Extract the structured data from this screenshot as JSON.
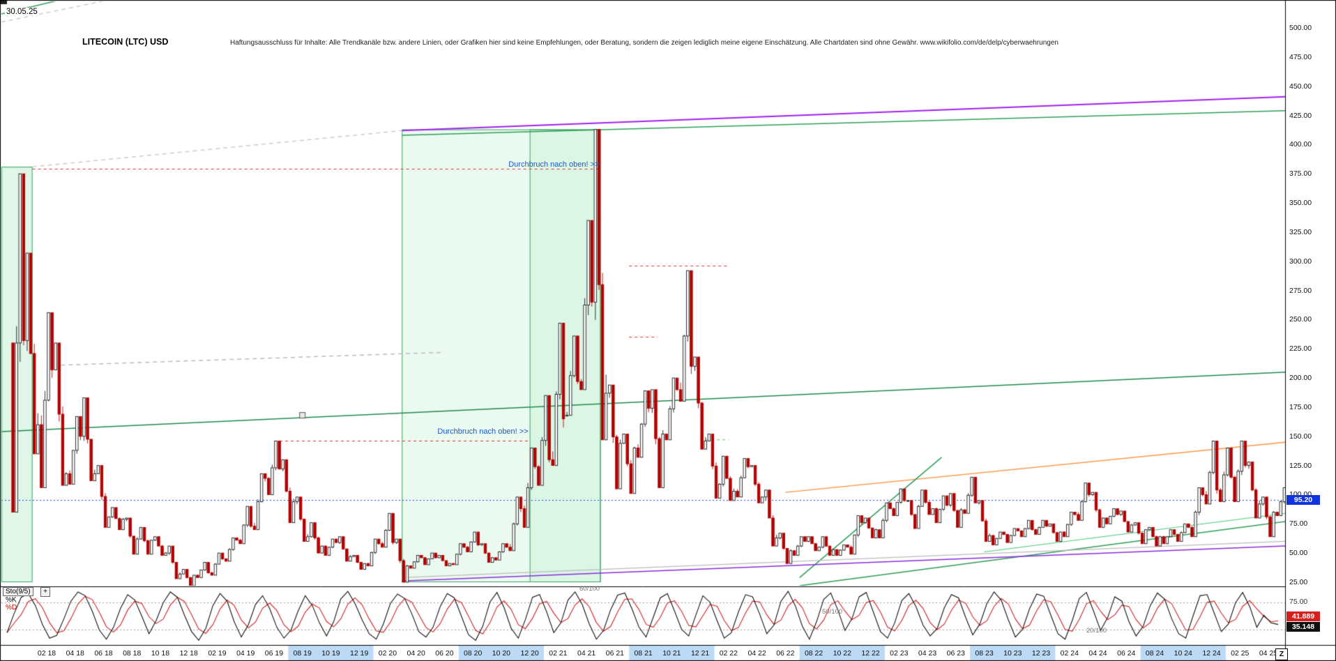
{
  "window": {
    "date_label": "30.05.25"
  },
  "header": {
    "title": "LITECOIN (LTC) USD",
    "disclaimer": "Haftungsausschluss für Inhalte: Alle Trendkanäle bzw. andere Linien, oder Grafiken hier sind keine Empfehlungen, oder Beratung, sondern die zeigen lediglich meine eigene Einschätzung. Alle Chartdaten sind ohne Gewähr.  www.wikifolio.com/de/delp/cyberwaehrungen"
  },
  "price_axis": {
    "current_badge": "95.20"
  },
  "x_axis": {
    "zoom_button": "Z"
  },
  "annotations": {
    "breakout_upper": "Durchbruch nach oben! >>",
    "breakout_lower": "Durchbruch nach oben! >>"
  },
  "indicator_panel": {
    "name": "Sto(9/5)",
    "expand_button": "+",
    "k_label": "%K",
    "d_label": "%D",
    "upper_level_label": "75.00",
    "d_badge": "41.889",
    "k_badge": "35.148",
    "notes": [
      "60/100",
      "50/100",
      "20/100"
    ]
  },
  "chart_data": {
    "type": "candlestick",
    "title": "LITECOIN (LTC) USD",
    "x_unit": "month",
    "ylim": [
      25,
      500
    ],
    "current_price": 95.2,
    "y_tick_labels": [
      "500.00",
      "475.00",
      "450.00",
      "425.00",
      "400.00",
      "375.00",
      "350.00",
      "325.00",
      "300.00",
      "275.00",
      "250.00",
      "225.00",
      "200.00",
      "175.00",
      "150.00",
      "125.00",
      "100.00",
      "75.00",
      "50.00",
      "25.00"
    ],
    "x_tick_labels": [
      "02 18",
      "04 18",
      "06 18",
      "08 18",
      "10 18",
      "12 18",
      "02 19",
      "04 19",
      "06 19",
      "08 19",
      "10 19",
      "12 19",
      "02 20",
      "04 20",
      "06 20",
      "08 20",
      "10 20",
      "12 20",
      "02 21",
      "04 21",
      "06 21",
      "08 21",
      "10 21",
      "12 21",
      "02 22",
      "04 22",
      "06 22",
      "08 22",
      "10 22",
      "12 22",
      "02 23",
      "04 23",
      "06 23",
      "08 23",
      "10 23",
      "12 23",
      "02 24",
      "04 24",
      "06 24",
      "08 24",
      "10 24",
      "12 24",
      "02 25",
      "04 25"
    ],
    "months": [
      "2017-12",
      "2018-01",
      "2018-02",
      "2018-03",
      "2018-04",
      "2018-05",
      "2018-06",
      "2018-07",
      "2018-08",
      "2018-09",
      "2018-10",
      "2018-11",
      "2018-12",
      "2019-01",
      "2019-02",
      "2019-03",
      "2019-04",
      "2019-05",
      "2019-06",
      "2019-07",
      "2019-08",
      "2019-09",
      "2019-10",
      "2019-11",
      "2019-12",
      "2020-01",
      "2020-02",
      "2020-03",
      "2020-04",
      "2020-05",
      "2020-06",
      "2020-07",
      "2020-08",
      "2020-09",
      "2020-10",
      "2020-11",
      "2020-12",
      "2021-01",
      "2021-02",
      "2021-03",
      "2021-04",
      "2021-05",
      "2021-06",
      "2021-07",
      "2021-08",
      "2021-09",
      "2021-10",
      "2021-11",
      "2021-12",
      "2022-01",
      "2022-02",
      "2022-03",
      "2022-04",
      "2022-05",
      "2022-06",
      "2022-07",
      "2022-08",
      "2022-09",
      "2022-10",
      "2022-11",
      "2022-12",
      "2023-01",
      "2023-02",
      "2023-03",
      "2023-04",
      "2023-05",
      "2023-06",
      "2023-07",
      "2023-08",
      "2023-09",
      "2023-10",
      "2023-11",
      "2023-12",
      "2024-01",
      "2024-02",
      "2024-03",
      "2024-04",
      "2024-05",
      "2024-06",
      "2024-07",
      "2024-08",
      "2024-09",
      "2024-10",
      "2024-11",
      "2024-12",
      "2025-01",
      "2025-02",
      "2025-03",
      "2025-04",
      "2025-05"
    ],
    "high": [
      375,
      307,
      256,
      230,
      167,
      183,
      125,
      89,
      80,
      72,
      64,
      56,
      36,
      42,
      50,
      63,
      90,
      118,
      146,
      130,
      98,
      76,
      62,
      64,
      48,
      62,
      84,
      62,
      48,
      50,
      48,
      58,
      68,
      58,
      58,
      98,
      140,
      185,
      247,
      236,
      335,
      413,
      194,
      152,
      189,
      190,
      200,
      292,
      218,
      152,
      133,
      131,
      125,
      104,
      67,
      64,
      64,
      64,
      57,
      82,
      80,
      93,
      105,
      95,
      104,
      99,
      101,
      115,
      95,
      68,
      71,
      78,
      78,
      75,
      85,
      110,
      102,
      88,
      86,
      76,
      72,
      70,
      75,
      106,
      146,
      140,
      146,
      128,
      98,
      106
    ],
    "low": [
      85,
      135,
      106,
      108,
      109,
      112,
      72,
      70,
      49,
      49,
      48,
      28,
      22,
      29,
      31,
      43,
      58,
      70,
      100,
      76,
      60,
      50,
      48,
      43,
      36,
      39,
      55,
      25,
      37,
      40,
      39,
      40,
      51,
      42,
      44,
      52,
      72,
      108,
      125,
      168,
      190,
      147,
      105,
      101,
      132,
      106,
      147,
      180,
      139,
      97,
      95,
      98,
      93,
      56,
      41,
      48,
      52,
      48,
      48,
      49,
      63,
      63,
      82,
      71,
      83,
      76,
      72,
      84,
      60,
      57,
      59,
      64,
      66,
      60,
      64,
      78,
      72,
      75,
      68,
      58,
      56,
      58,
      60,
      64,
      92,
      94,
      94,
      80,
      64,
      82
    ],
    "close": [
      232,
      160,
      207,
      118,
      150,
      118,
      81,
      79,
      62,
      61,
      50,
      32,
      31,
      33,
      45,
      61,
      73,
      114,
      122,
      94,
      64,
      56,
      59,
      47,
      41,
      58,
      59,
      39,
      46,
      46,
      41,
      55,
      57,
      46,
      55,
      88,
      124,
      130,
      165,
      197,
      265,
      187,
      144,
      140,
      174,
      152,
      190,
      210,
      146,
      109,
      103,
      124,
      98,
      63,
      52,
      60,
      55,
      53,
      55,
      76,
      70,
      88,
      95,
      90,
      88,
      91,
      87,
      93,
      65,
      66,
      69,
      70,
      73,
      68,
      83,
      100,
      80,
      83,
      74,
      70,
      64,
      66,
      72,
      100,
      104,
      115,
      125,
      92,
      85,
      95.2
    ],
    "overlays": {
      "regions": [
        {
          "x1": "start",
          "x2": "2018-01",
          "p1": 25,
          "p2": 381,
          "fill": "rgba(110,215,150,0.22)",
          "stroke": "#3aa45f"
        },
        {
          "x1": "2020-03",
          "x2": "2021-05",
          "p1": 25,
          "p2": 413,
          "fill": "rgba(130,225,160,0.16)",
          "stroke": "#3aa45f"
        },
        {
          "x1": "2020-12",
          "x2": "2021-05",
          "p1": 25,
          "p2": 413,
          "fill": "rgba(130,225,160,0.14)",
          "stroke": "#3aa45f"
        }
      ],
      "lines": [
        {
          "x1": "2020-03",
          "p1": 412,
          "x2": "end",
          "p2": 441,
          "color": "#a020f0",
          "w": 2
        },
        {
          "x1": "2020-03",
          "p1": 408,
          "x2": "end",
          "p2": 429,
          "color": "#2e9e57",
          "w": 1.5
        },
        {
          "x1": "start",
          "p1": 154,
          "x2": "end",
          "p2": 205,
          "color": "#1f8a4c",
          "w": 1.5
        },
        {
          "x1": "2018-03",
          "p1": 211,
          "x2": "2020-06",
          "p2": 222,
          "color": "#bbbbbb",
          "w": 1.5,
          "dash": [
            6,
            5
          ]
        },
        {
          "x1": "2018-01",
          "p1": 381,
          "x2": "2020-03",
          "p2": 412,
          "color": "#cccccc",
          "w": 1.5,
          "dash": [
            6,
            5
          ]
        },
        {
          "x1": "2018-01",
          "p1": 379,
          "x2": "2021-05",
          "p2": 379,
          "color": "#e03030",
          "w": 1,
          "dash": [
            4,
            4
          ]
        },
        {
          "x1": "2019-06",
          "p1": 146,
          "x2": "2020-12",
          "p2": 146,
          "color": "#e03030",
          "w": 1,
          "dash": [
            4,
            4
          ]
        },
        {
          "x1": "2021-07",
          "p1": 296,
          "x2": "2022-02",
          "p2": 296,
          "color": "#e03030",
          "w": 1,
          "dash": [
            4,
            4
          ]
        },
        {
          "x1": "2021-07",
          "p1": 235,
          "x2": "2021-09",
          "p2": 235,
          "color": "#e03030",
          "w": 1,
          "dash": [
            4,
            4
          ]
        },
        {
          "x1": "2021-12",
          "p1": 147,
          "x2": "2022-02",
          "p2": 147,
          "color": "#49c97a",
          "w": 1,
          "dash": [
            4,
            4
          ]
        },
        {
          "x1": "start",
          "p1": 95.2,
          "x2": "end",
          "p2": 95.2,
          "color": "#2244ee",
          "w": 1,
          "dash": [
            2,
            3
          ]
        },
        {
          "x1": "2022-06",
          "p1": 102,
          "x2": "end",
          "p2": 145,
          "color": "#ff9440",
          "w": 1.5
        },
        {
          "x1": "2022-07",
          "p1": 29,
          "x2": "2023-05",
          "p2": 132,
          "color": "#2e9e57",
          "w": 1.5
        },
        {
          "x1": "2022-07",
          "p1": 22,
          "x2": "end",
          "p2": 77,
          "color": "#2e9e57",
          "w": 1.5
        },
        {
          "x1": "2023-08",
          "p1": 51,
          "x2": "end",
          "p2": 84,
          "color": "#49c97a",
          "w": 1.2
        },
        {
          "x1": "2020-03",
          "p1": 26,
          "x2": "end",
          "p2": 56,
          "color": "#8a2be2",
          "w": 1.5
        },
        {
          "x1": "2020-03",
          "p1": 29,
          "x2": "end",
          "p2": 60,
          "color": "#bbbbbb",
          "w": 1.2
        },
        {
          "x1": "start",
          "p1": 512,
          "x2": "2018-04",
          "p2": 527,
          "color": "#2e9e57",
          "w": 1.5
        },
        {
          "x1": "start",
          "p1": 505,
          "x2": "2018-08",
          "p2": 528,
          "color": "#cccccc",
          "w": 1.5,
          "dash": [
            6,
            5
          ]
        }
      ],
      "marker": {
        "x": "2019-08",
        "price": 168
      },
      "text_anchors": {
        "upper": {
          "x": "2021-05",
          "price": 381
        },
        "lower": {
          "x": "2020-12",
          "price": 153
        }
      }
    },
    "indicator": {
      "name": "Sto(9/5)",
      "levels": [
        75,
        25
      ],
      "d_smoothing": 3,
      "k_last": 35.148,
      "d_last": 41.889,
      "k_values": [
        20,
        55,
        85,
        92,
        70,
        35,
        10,
        15,
        45,
        78,
        95,
        88,
        60,
        25,
        8,
        30,
        65,
        90,
        80,
        50,
        18,
        42,
        75,
        95,
        85,
        52,
        22,
        6,
        28,
        70,
        92,
        78,
        40,
        12,
        35,
        72,
        88,
        64,
        30,
        10,
        25,
        60,
        88,
        70,
        38,
        14,
        40,
        82,
        96,
        74,
        44,
        18,
        8,
        36,
        74,
        91,
        83,
        55,
        22,
        12,
        30,
        68,
        92,
        84,
        50,
        16,
        6,
        32,
        76,
        94,
        66,
        28,
        10,
        44,
        85,
        90,
        58,
        20,
        38,
        80,
        95,
        72,
        36,
        8,
        24,
        62,
        89,
        93,
        64,
        30,
        12,
        48,
        84,
        92,
        60,
        26,
        14,
        52,
        88,
        76,
        42,
        10,
        20,
        58,
        90,
        86,
        54,
        18,
        34,
        78,
        96,
        70,
        32,
        8,
        40,
        81,
        93,
        62,
        24,
        46,
        86,
        94,
        58,
        22,
        10,
        38,
        79,
        92,
        68,
        34,
        14,
        28,
        66,
        90,
        84,
        48,
        16,
        36,
        74,
        95,
        80,
        44,
        12,
        26,
        64,
        91,
        87,
        52,
        18,
        8,
        42,
        83,
        94,
        60,
        24,
        48,
        86,
        78,
        40,
        14,
        32,
        70,
        93,
        82,
        46,
        18,
        10,
        50,
        88,
        90,
        56,
        22,
        36,
        75,
        94,
        68,
        30,
        52,
        38,
        35.1
      ]
    }
  }
}
